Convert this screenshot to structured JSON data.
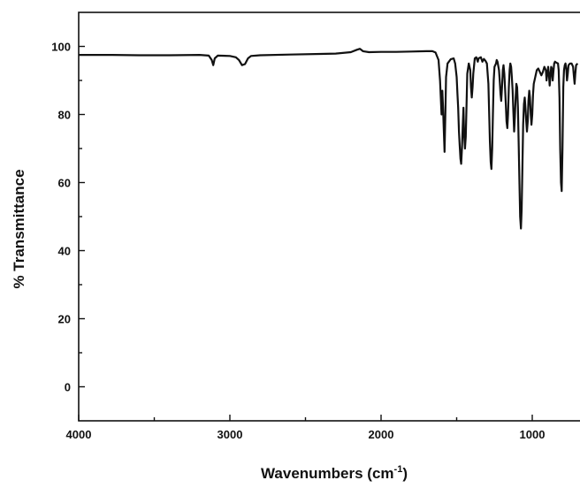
{
  "chart_data": {
    "type": "line",
    "title": "",
    "xlabel_main": "Wavenumbers (cm",
    "xlabel_sup": "-1",
    "xlabel_close": ")",
    "ylabel": "% Transmittance",
    "xlim": [
      4000,
      700
    ],
    "x_reversed": true,
    "ylim": [
      -10,
      110
    ],
    "x_ticks": [
      4000,
      3000,
      2000,
      1000
    ],
    "x_tick_labels": [
      "4000",
      "3000",
      "2000",
      "1000"
    ],
    "x_minor_ticks": [
      3500,
      2500,
      1500
    ],
    "y_ticks": [
      0,
      20,
      40,
      60,
      80,
      100
    ],
    "y_tick_labels": [
      "0",
      "20",
      "40",
      "60",
      "80",
      "100"
    ],
    "y_minor_ticks": [
      10,
      30,
      50,
      70,
      90
    ],
    "grid": false,
    "legend": "none",
    "series": [
      {
        "color": "#111111",
        "points": [
          [
            4000,
            97.5
          ],
          [
            3800,
            97.5
          ],
          [
            3600,
            97.4
          ],
          [
            3400,
            97.4
          ],
          [
            3200,
            97.5
          ],
          [
            3140,
            97.3
          ],
          [
            3120,
            96.0
          ],
          [
            3110,
            94.5
          ],
          [
            3100,
            96.5
          ],
          [
            3080,
            97.3
          ],
          [
            3000,
            97.2
          ],
          [
            2960,
            96.8
          ],
          [
            2940,
            96.0
          ],
          [
            2920,
            94.5
          ],
          [
            2900,
            94.8
          ],
          [
            2880,
            96.5
          ],
          [
            2860,
            97.2
          ],
          [
            2800,
            97.4
          ],
          [
            2600,
            97.6
          ],
          [
            2400,
            97.8
          ],
          [
            2300,
            97.9
          ],
          [
            2200,
            98.3
          ],
          [
            2160,
            99.0
          ],
          [
            2140,
            99.3
          ],
          [
            2120,
            98.6
          ],
          [
            2080,
            98.3
          ],
          [
            2000,
            98.4
          ],
          [
            1900,
            98.4
          ],
          [
            1800,
            98.5
          ],
          [
            1700,
            98.6
          ],
          [
            1660,
            98.6
          ],
          [
            1640,
            98.2
          ],
          [
            1620,
            96.0
          ],
          [
            1610,
            90.0
          ],
          [
            1600,
            80.0
          ],
          [
            1595,
            87.0
          ],
          [
            1590,
            82.0
          ],
          [
            1585,
            75.0
          ],
          [
            1580,
            69.0
          ],
          [
            1575,
            80.0
          ],
          [
            1570,
            91.0
          ],
          [
            1560,
            95.0
          ],
          [
            1540,
            96.2
          ],
          [
            1520,
            96.5
          ],
          [
            1510,
            95.0
          ],
          [
            1500,
            91.0
          ],
          [
            1495,
            86.0
          ],
          [
            1490,
            82.0
          ],
          [
            1485,
            75.0
          ],
          [
            1480,
            71.0
          ],
          [
            1475,
            67.0
          ],
          [
            1470,
            65.5
          ],
          [
            1465,
            70.0
          ],
          [
            1460,
            76.0
          ],
          [
            1455,
            82.0
          ],
          [
            1450,
            74.0
          ],
          [
            1445,
            70.0
          ],
          [
            1440,
            73.5
          ],
          [
            1435,
            82.0
          ],
          [
            1430,
            92.0
          ],
          [
            1420,
            95.0
          ],
          [
            1410,
            93.0
          ],
          [
            1405,
            88.0
          ],
          [
            1400,
            85.0
          ],
          [
            1395,
            88.0
          ],
          [
            1390,
            92.0
          ],
          [
            1380,
            96.5
          ],
          [
            1370,
            96.8
          ],
          [
            1360,
            95.5
          ],
          [
            1355,
            96.5
          ],
          [
            1340,
            96.8
          ],
          [
            1330,
            95.5
          ],
          [
            1320,
            96.3
          ],
          [
            1310,
            95.8
          ],
          [
            1300,
            95.0
          ],
          [
            1290,
            89.0
          ],
          [
            1285,
            80.0
          ],
          [
            1280,
            72.0
          ],
          [
            1275,
            66.0
          ],
          [
            1270,
            64.0
          ],
          [
            1265,
            70.0
          ],
          [
            1260,
            80.0
          ],
          [
            1255,
            90.0
          ],
          [
            1250,
            94.0
          ],
          [
            1240,
            95.0
          ],
          [
            1235,
            96.0
          ],
          [
            1230,
            95.5
          ],
          [
            1220,
            93.0
          ],
          [
            1215,
            90.0
          ],
          [
            1210,
            86.0
          ],
          [
            1205,
            84.0
          ],
          [
            1200,
            88.0
          ],
          [
            1195,
            93.0
          ],
          [
            1190,
            94.5
          ],
          [
            1185,
            92.0
          ],
          [
            1180,
            88.0
          ],
          [
            1175,
            83.0
          ],
          [
            1170,
            78.0
          ],
          [
            1165,
            76.0
          ],
          [
            1160,
            80.0
          ],
          [
            1155,
            88.0
          ],
          [
            1150,
            93.0
          ],
          [
            1145,
            95.0
          ],
          [
            1140,
            94.0
          ],
          [
            1135,
            91.0
          ],
          [
            1130,
            87.0
          ],
          [
            1125,
            81.0
          ],
          [
            1120,
            75.0
          ],
          [
            1115,
            79.0
          ],
          [
            1110,
            85.0
          ],
          [
            1105,
            89.0
          ],
          [
            1100,
            88.0
          ],
          [
            1095,
            82.0
          ],
          [
            1090,
            72.0
          ],
          [
            1085,
            60.0
          ],
          [
            1080,
            50.0
          ],
          [
            1075,
            46.5
          ],
          [
            1070,
            52.0
          ],
          [
            1065,
            65.0
          ],
          [
            1060,
            77.0
          ],
          [
            1055,
            83.0
          ],
          [
            1050,
            85.0
          ],
          [
            1045,
            82.0
          ],
          [
            1040,
            78.0
          ],
          [
            1035,
            75.0
          ],
          [
            1030,
            78.0
          ],
          [
            1025,
            84.0
          ],
          [
            1020,
            87.0
          ],
          [
            1015,
            85.0
          ],
          [
            1010,
            80.0
          ],
          [
            1005,
            77.0
          ],
          [
            1000,
            80.0
          ],
          [
            995,
            86.0
          ],
          [
            990,
            89.0
          ],
          [
            980,
            91.0
          ],
          [
            970,
            93.0
          ],
          [
            960,
            93.5
          ],
          [
            950,
            92.5
          ],
          [
            940,
            91.5
          ],
          [
            930,
            92.5
          ],
          [
            920,
            94.0
          ],
          [
            910,
            93.0
          ],
          [
            905,
            90.0
          ],
          [
            900,
            92.0
          ],
          [
            895,
            94.0
          ],
          [
            890,
            92.0
          ],
          [
            885,
            88.5
          ],
          [
            880,
            91.0
          ],
          [
            875,
            94.0
          ],
          [
            870,
            93.5
          ],
          [
            865,
            90.0
          ],
          [
            860,
            92.5
          ],
          [
            855,
            95.0
          ],
          [
            850,
            95.5
          ],
          [
            840,
            95.2
          ],
          [
            830,
            95.0
          ],
          [
            825,
            93.0
          ],
          [
            820,
            85.0
          ],
          [
            815,
            70.0
          ],
          [
            810,
            60.0
          ],
          [
            805,
            57.5
          ],
          [
            800,
            70.0
          ],
          [
            795,
            88.0
          ],
          [
            790,
            93.0
          ],
          [
            785,
            94.5
          ],
          [
            780,
            95.0
          ],
          [
            775,
            93.5
          ],
          [
            770,
            90.0
          ],
          [
            765,
            92.0
          ],
          [
            760,
            94.5
          ],
          [
            750,
            95.0
          ],
          [
            740,
            95.0
          ],
          [
            730,
            94.0
          ],
          [
            725,
            91.5
          ],
          [
            720,
            89.0
          ],
          [
            715,
            92.0
          ],
          [
            710,
            94.5
          ],
          [
            700,
            95.0
          ]
        ]
      }
    ]
  }
}
